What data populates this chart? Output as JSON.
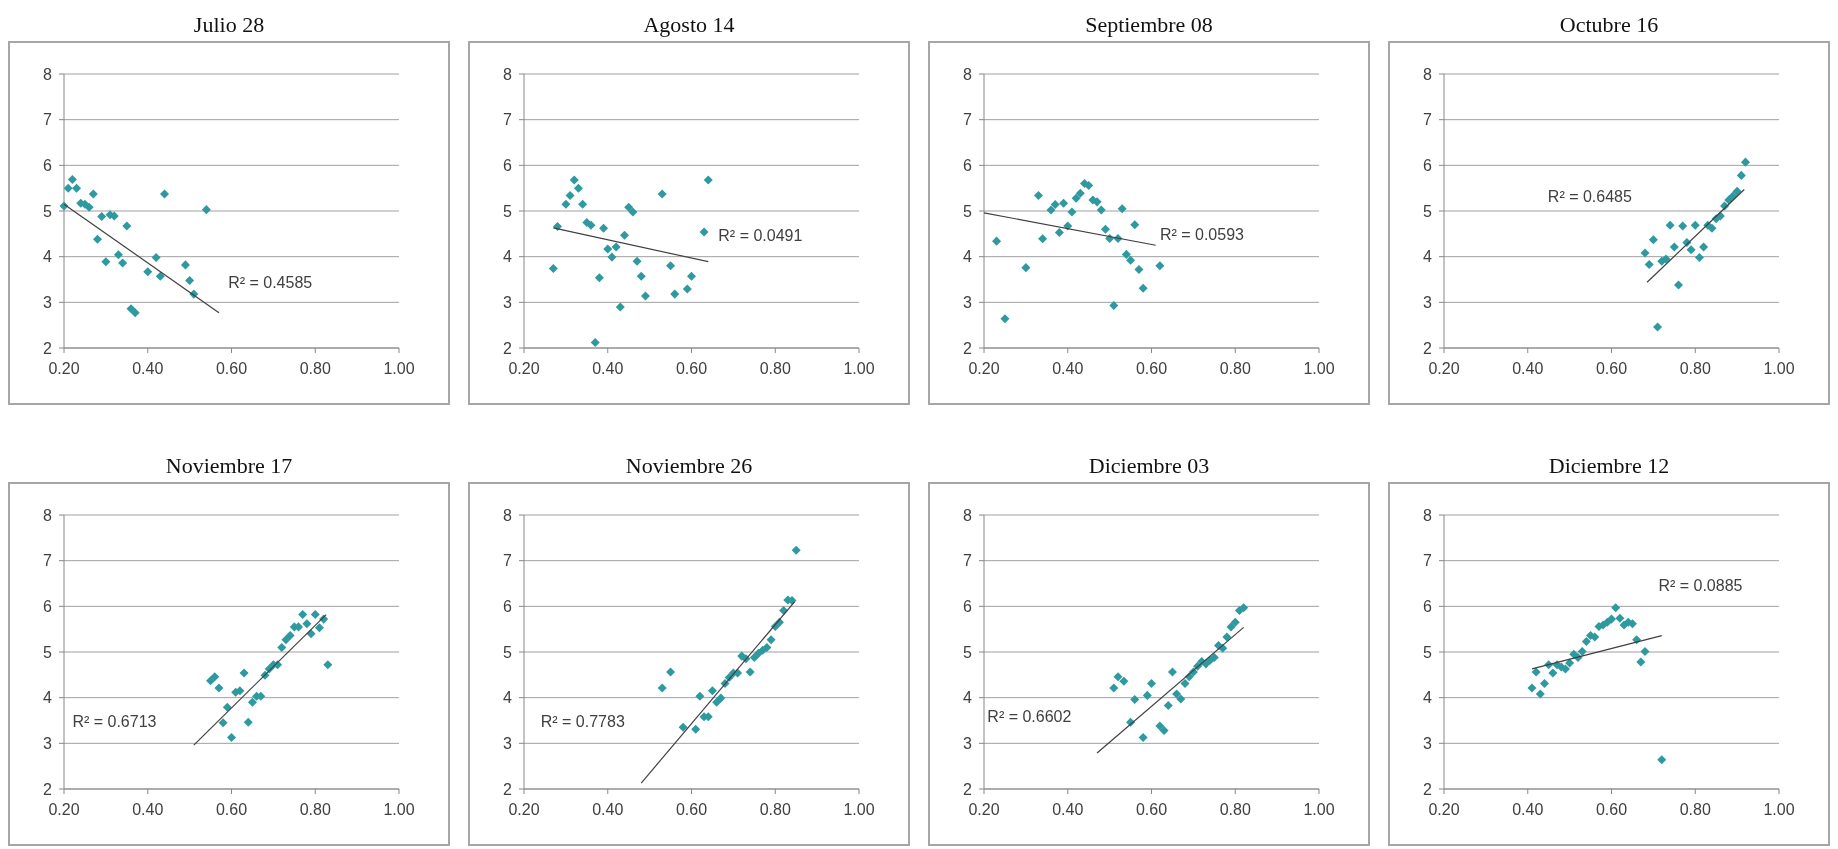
{
  "chart_data": [
    {
      "type": "scatter",
      "title": "Julio 28",
      "xlim": [
        0.2,
        1
      ],
      "xticks": [
        {
          "value": 0.2,
          "label": "0.20"
        },
        {
          "value": 0.4,
          "label": "0.40"
        },
        {
          "value": 0.6,
          "label": "0.60"
        },
        {
          "value": 0.8,
          "label": "0.80"
        },
        {
          "value": 1,
          "label": "1.00"
        }
      ],
      "ylim": [
        2,
        8
      ],
      "yticks": [
        2,
        3,
        4,
        5,
        6,
        7,
        8
      ],
      "grid": "y",
      "annotations": [
        "R² = 0.4585"
      ],
      "series": [
        {
          "marker": "diamond",
          "color": "#2e9aa0",
          "x": [
            0.2,
            0.21,
            0.22,
            0.23,
            0.24,
            0.25,
            0.26,
            0.27,
            0.28,
            0.29,
            0.3,
            0.31,
            0.32,
            0.33,
            0.34,
            0.35,
            0.36,
            0.37,
            0.4,
            0.42,
            0.43,
            0.44,
            0.49,
            0.5,
            0.51,
            0.54
          ],
          "values": [
            5.11,
            5.5,
            5.69,
            5.5,
            5.17,
            5.15,
            5.08,
            5.37,
            4.38,
            4.88,
            3.89,
            4.92,
            4.89,
            4.04,
            3.86,
            4.67,
            2.86,
            2.77,
            3.67,
            3.98,
            3.57,
            5.37,
            3.82,
            3.48,
            3.18,
            5.03
          ]
        },
        {
          "type": "line",
          "marker": "none",
          "color": "#404040",
          "x": [
            0.2,
            0.57
          ],
          "values": [
            5.15,
            2.77
          ]
        }
      ]
    },
    {
      "type": "scatter",
      "title": "Agosto 14",
      "xlim": [
        0.2,
        1
      ],
      "xticks": [
        {
          "value": 0.2,
          "label": "0.20"
        },
        {
          "value": 0.4,
          "label": "0.40"
        },
        {
          "value": 0.6,
          "label": "0.60"
        },
        {
          "value": 0.8,
          "label": "0.80"
        },
        {
          "value": 1,
          "label": "1.00"
        }
      ],
      "ylim": [
        2,
        8
      ],
      "yticks": [
        2,
        3,
        4,
        5,
        6,
        7,
        8
      ],
      "grid": "y",
      "annotations": [
        "R² = 0.0491"
      ],
      "series": [
        {
          "marker": "diamond",
          "color": "#2e9aa0",
          "x": [
            0.27,
            0.28,
            0.3,
            0.31,
            0.32,
            0.33,
            0.34,
            0.35,
            0.36,
            0.37,
            0.38,
            0.39,
            0.4,
            0.41,
            0.42,
            0.43,
            0.44,
            0.45,
            0.46,
            0.47,
            0.48,
            0.49,
            0.53,
            0.55,
            0.56,
            0.59,
            0.6,
            0.63,
            0.64
          ],
          "values": [
            3.74,
            4.66,
            5.15,
            5.34,
            5.68,
            5.5,
            5.15,
            4.75,
            4.69,
            2.12,
            3.54,
            4.62,
            4.17,
            3.99,
            4.21,
            2.9,
            4.47,
            5.08,
            4.98,
            3.9,
            3.57,
            3.14,
            5.37,
            3.8,
            3.18,
            3.29,
            3.57,
            4.54,
            5.68
          ]
        },
        {
          "type": "line",
          "marker": "none",
          "color": "#404040",
          "x": [
            0.27,
            0.64
          ],
          "values": [
            4.63,
            3.89
          ]
        }
      ]
    },
    {
      "type": "scatter",
      "title": "Septiembre 08",
      "xlim": [
        0.2,
        1
      ],
      "xticks": [
        {
          "value": 0.2,
          "label": "0.20"
        },
        {
          "value": 0.4,
          "label": "0.40"
        },
        {
          "value": 0.6,
          "label": "0.60"
        },
        {
          "value": 0.8,
          "label": "0.80"
        },
        {
          "value": 1,
          "label": "1.00"
        }
      ],
      "ylim": [
        2,
        8
      ],
      "yticks": [
        2,
        3,
        4,
        5,
        6,
        7,
        8
      ],
      "grid": "y",
      "annotations": [
        "R² = 0.0593"
      ],
      "series": [
        {
          "marker": "diamond",
          "color": "#2e9aa0",
          "x": [
            0.23,
            0.25,
            0.3,
            0.33,
            0.34,
            0.36,
            0.37,
            0.38,
            0.39,
            0.4,
            0.41,
            0.42,
            0.43,
            0.44,
            0.45,
            0.46,
            0.47,
            0.48,
            0.49,
            0.5,
            0.51,
            0.52,
            0.53,
            0.54,
            0.55,
            0.56,
            0.57,
            0.58,
            0.62
          ],
          "values": [
            4.34,
            2.64,
            3.76,
            5.34,
            4.39,
            5.02,
            5.14,
            4.53,
            5.17,
            4.67,
            4.98,
            5.28,
            5.39,
            5.6,
            5.56,
            5.24,
            5.2,
            5.02,
            4.6,
            4.4,
            2.93,
            4.4,
            5.05,
            4.05,
            3.92,
            4.7,
            3.72,
            3.31,
            3.8
          ]
        },
        {
          "type": "line",
          "marker": "none",
          "color": "#404040",
          "x": [
            0.2,
            0.61
          ],
          "values": [
            4.96,
            4.25
          ]
        }
      ]
    },
    {
      "type": "scatter",
      "title": "Octubre 16",
      "xlim": [
        0.2,
        1
      ],
      "xticks": [
        {
          "value": 0.2,
          "label": "0.20"
        },
        {
          "value": 0.4,
          "label": "0.40"
        },
        {
          "value": 0.6,
          "label": "0.60"
        },
        {
          "value": 0.8,
          "label": "0.80"
        },
        {
          "value": 1,
          "label": "1.00"
        }
      ],
      "ylim": [
        2,
        8
      ],
      "yticks": [
        2,
        3,
        4,
        5,
        6,
        7,
        8
      ],
      "grid": "y",
      "annotations": [
        "R² = 0.6485"
      ],
      "series": [
        {
          "marker": "diamond",
          "color": "#2e9aa0",
          "x": [
            0.68,
            0.69,
            0.7,
            0.71,
            0.72,
            0.73,
            0.74,
            0.75,
            0.76,
            0.77,
            0.78,
            0.79,
            0.8,
            0.81,
            0.82,
            0.83,
            0.84,
            0.85,
            0.86,
            0.87,
            0.88,
            0.89,
            0.9,
            0.91,
            0.92
          ],
          "values": [
            4.08,
            3.83,
            4.37,
            2.46,
            3.9,
            3.95,
            4.69,
            4.21,
            3.38,
            4.67,
            4.31,
            4.15,
            4.69,
            3.98,
            4.21,
            4.69,
            4.62,
            4.83,
            4.89,
            5.11,
            5.24,
            5.33,
            5.43,
            5.78,
            6.07
          ]
        },
        {
          "type": "line",
          "marker": "none",
          "color": "#404040",
          "x": [
            0.685,
            0.917
          ],
          "values": [
            3.44,
            5.47
          ]
        }
      ]
    },
    {
      "type": "scatter",
      "title": "Noviembre 17",
      "xlim": [
        0.2,
        1
      ],
      "xticks": [
        {
          "value": 0.2,
          "label": "0.20"
        },
        {
          "value": 0.4,
          "label": "0.40"
        },
        {
          "value": 0.6,
          "label": "0.60"
        },
        {
          "value": 0.8,
          "label": "0.80"
        },
        {
          "value": 1,
          "label": "1.00"
        }
      ],
      "ylim": [
        2,
        8
      ],
      "yticks": [
        2,
        3,
        4,
        5,
        6,
        7,
        8
      ],
      "grid": "y",
      "annotations": [
        "R² = 0.6713"
      ],
      "series": [
        {
          "marker": "diamond",
          "color": "#2e9aa0",
          "x": [
            0.55,
            0.56,
            0.57,
            0.58,
            0.59,
            0.6,
            0.61,
            0.62,
            0.63,
            0.64,
            0.65,
            0.66,
            0.67,
            0.68,
            0.69,
            0.7,
            0.71,
            0.72,
            0.73,
            0.74,
            0.75,
            0.76,
            0.77,
            0.78,
            0.79,
            0.8,
            0.81,
            0.82,
            0.83
          ],
          "values": [
            4.37,
            4.46,
            4.21,
            3.45,
            3.79,
            3.13,
            4.12,
            4.15,
            4.54,
            3.46,
            3.9,
            4.03,
            4.03,
            4.49,
            4.63,
            4.72,
            4.72,
            5.1,
            5.27,
            5.36,
            5.55,
            5.55,
            5.82,
            5.62,
            5.4,
            5.82,
            5.53,
            5.72,
            4.72
          ]
        },
        {
          "type": "line",
          "marker": "none",
          "color": "#404040",
          "x": [
            0.51,
            0.826
          ],
          "values": [
            2.96,
            5.82
          ]
        }
      ]
    },
    {
      "type": "scatter",
      "title": "Noviembre 26",
      "xlim": [
        0.2,
        1
      ],
      "xticks": [
        {
          "value": 0.2,
          "label": "0.20"
        },
        {
          "value": 0.4,
          "label": "0.40"
        },
        {
          "value": 0.6,
          "label": "0.60"
        },
        {
          "value": 0.8,
          "label": "0.80"
        },
        {
          "value": 1,
          "label": "1.00"
        }
      ],
      "ylim": [
        2,
        8
      ],
      "yticks": [
        2,
        3,
        4,
        5,
        6,
        7,
        8
      ],
      "grid": "y",
      "annotations": [
        "R² = 0.7783"
      ],
      "series": [
        {
          "marker": "diamond",
          "color": "#2e9aa0",
          "x": [
            0.53,
            0.55,
            0.58,
            0.61,
            0.62,
            0.63,
            0.64,
            0.65,
            0.66,
            0.67,
            0.68,
            0.69,
            0.7,
            0.71,
            0.72,
            0.73,
            0.74,
            0.75,
            0.76,
            0.77,
            0.78,
            0.79,
            0.8,
            0.81,
            0.82,
            0.83,
            0.84,
            0.85
          ],
          "values": [
            4.21,
            4.56,
            3.35,
            3.31,
            4.03,
            3.58,
            3.58,
            4.15,
            3.9,
            3.99,
            4.31,
            4.44,
            4.54,
            4.54,
            4.91,
            4.85,
            4.56,
            4.88,
            4.97,
            5.04,
            5.1,
            5.27,
            5.56,
            5.65,
            5.91,
            6.14,
            6.13,
            7.23
          ]
        },
        {
          "type": "line",
          "marker": "none",
          "color": "#404040",
          "x": [
            0.48,
            0.846
          ],
          "values": [
            2.13,
            6.1
          ]
        }
      ]
    },
    {
      "type": "scatter",
      "title": "Diciembre 03",
      "xlim": [
        0.2,
        1
      ],
      "xticks": [
        {
          "value": 0.2,
          "label": "0.20"
        },
        {
          "value": 0.4,
          "label": "0.40"
        },
        {
          "value": 0.6,
          "label": "0.60"
        },
        {
          "value": 0.8,
          "label": "0.80"
        },
        {
          "value": 1,
          "label": "1.00"
        }
      ],
      "ylim": [
        2,
        8
      ],
      "yticks": [
        2,
        3,
        4,
        5,
        6,
        7,
        8
      ],
      "grid": "y",
      "annotations": [
        "R² = 0.6602"
      ],
      "series": [
        {
          "marker": "diamond",
          "color": "#2e9aa0",
          "x": [
            0.51,
            0.52,
            0.534,
            0.55,
            0.56,
            0.58,
            0.59,
            0.6,
            0.62,
            0.63,
            0.64,
            0.65,
            0.66,
            0.67,
            0.68,
            0.69,
            0.7,
            0.71,
            0.72,
            0.73,
            0.74,
            0.75,
            0.76,
            0.77,
            0.78,
            0.79,
            0.8,
            0.81,
            0.82
          ],
          "values": [
            4.21,
            4.46,
            4.36,
            3.46,
            3.96,
            3.13,
            4.05,
            4.31,
            3.38,
            3.28,
            3.83,
            4.56,
            4.08,
            3.97,
            4.31,
            4.46,
            4.56,
            4.69,
            4.79,
            4.74,
            4.82,
            4.88,
            5.14,
            5.08,
            5.33,
            5.55,
            5.65,
            5.91,
            5.97
          ]
        },
        {
          "type": "line",
          "marker": "none",
          "color": "#404040",
          "x": [
            0.47,
            0.82
          ],
          "values": [
            2.79,
            5.54
          ]
        }
      ]
    },
    {
      "type": "scatter",
      "title": "Diciembre 12",
      "xlim": [
        0.2,
        1
      ],
      "xticks": [
        {
          "value": 0.2,
          "label": "0.20"
        },
        {
          "value": 0.4,
          "label": "0.40"
        },
        {
          "value": 0.6,
          "label": "0.60"
        },
        {
          "value": 0.8,
          "label": "0.80"
        },
        {
          "value": 1,
          "label": "1.00"
        }
      ],
      "ylim": [
        2,
        8
      ],
      "yticks": [
        2,
        3,
        4,
        5,
        6,
        7,
        8
      ],
      "grid": "y",
      "annotations": [
        "R² = 0.0885"
      ],
      "series": [
        {
          "marker": "diamond",
          "color": "#2e9aa0",
          "x": [
            0.41,
            0.42,
            0.43,
            0.44,
            0.45,
            0.46,
            0.47,
            0.48,
            0.49,
            0.5,
            0.51,
            0.52,
            0.53,
            0.54,
            0.55,
            0.56,
            0.57,
            0.58,
            0.59,
            0.6,
            0.61,
            0.62,
            0.63,
            0.64,
            0.65,
            0.66,
            0.67,
            0.68,
            0.72
          ],
          "values": [
            4.21,
            4.56,
            4.08,
            4.31,
            4.72,
            4.54,
            4.72,
            4.67,
            4.63,
            4.76,
            4.95,
            4.88,
            5.01,
            5.23,
            5.36,
            5.33,
            5.56,
            5.59,
            5.65,
            5.72,
            5.97,
            5.74,
            5.59,
            5.65,
            5.62,
            5.27,
            4.78,
            5.01,
            2.64
          ]
        },
        {
          "type": "line",
          "marker": "none",
          "color": "#404040",
          "x": [
            0.41,
            0.72
          ],
          "values": [
            4.63,
            5.36
          ]
        }
      ]
    }
  ]
}
